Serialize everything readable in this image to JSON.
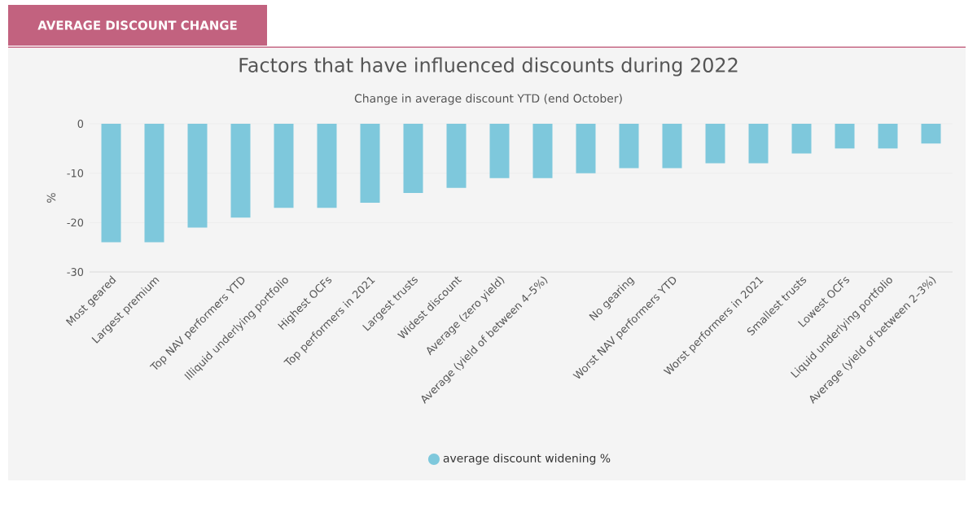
{
  "chart_data": {
    "type": "bar",
    "title": "Factors that have influenced discounts during 2022",
    "subtitle": "Change in average discount YTD (end October)",
    "ylabel": "%",
    "annotations": [
      "AVERAGE DISCOUNT CHANGE"
    ],
    "categories": [
      "Most geared",
      "Largest premium",
      null,
      "Top NAV performers YTD",
      "Illiquid underlying portfolio",
      "Highest OCFs",
      "Top performers in 2021",
      "Largest trusts",
      "Widest discount",
      "Average (zero yield)",
      "Average (yield of between 4–5%)",
      null,
      "No gearing",
      "Worst NAV performers YTD",
      null,
      "Worst performers in 2021",
      "Smallest trusts",
      "Lowest OCFs",
      "Liquid underlying portfolio",
      "Average (yield of between 2–3%)"
    ],
    "series": [
      {
        "name": "average discount widening %",
        "color": "#7ec8dc",
        "values": [
          -24,
          -24,
          -21,
          -19,
          -17,
          -17,
          -16,
          -14,
          -13,
          -11,
          -11,
          -10,
          -9,
          -9,
          -8,
          -8,
          -6,
          -5,
          -5,
          -4
        ]
      }
    ],
    "ylim": [
      -30,
      0
    ],
    "yticks": [
      0,
      -10,
      -20,
      -30
    ],
    "grid": "y",
    "legend": "bottom"
  }
}
